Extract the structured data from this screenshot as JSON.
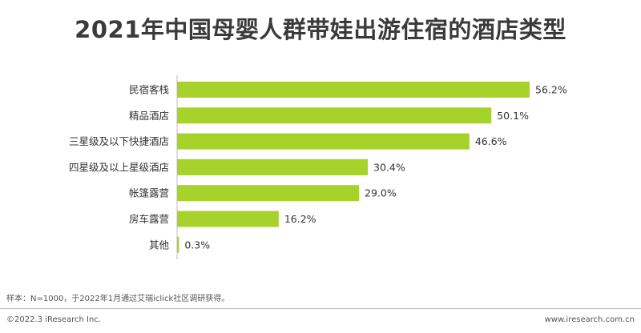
{
  "page": {
    "title": "2021年中国母婴人群带娃出游住宿的酒店类型",
    "note": "样本：N=1000，于2022年1月通过艾瑞iclick社区调研获得。",
    "copyright": "©2022.3 iResearch Inc.",
    "site": "www.iresearch.com.cn"
  },
  "colors": {
    "bar": "#a7d12b",
    "axis": "#bfbfbf",
    "text": "#333333"
  },
  "chart_data": {
    "type": "bar",
    "orientation": "horizontal",
    "title": "2021年中国母婴人群带娃出游住宿的酒店类型",
    "xlabel": "",
    "ylabel": "",
    "grid": false,
    "xlim": [
      0,
      60
    ],
    "categories": [
      "民宿客栈",
      "精品酒店",
      "三星级及以下快捷酒店",
      "四星级及以上星级酒店",
      "帐篷露营",
      "房车露营",
      "其他"
    ],
    "values": [
      56.2,
      50.1,
      46.6,
      30.4,
      29.0,
      16.2,
      0.3
    ],
    "data_labels": [
      "56.2%",
      "50.1%",
      "46.6%",
      "30.4%",
      "29.0%",
      "16.2%",
      "0.3%"
    ]
  }
}
